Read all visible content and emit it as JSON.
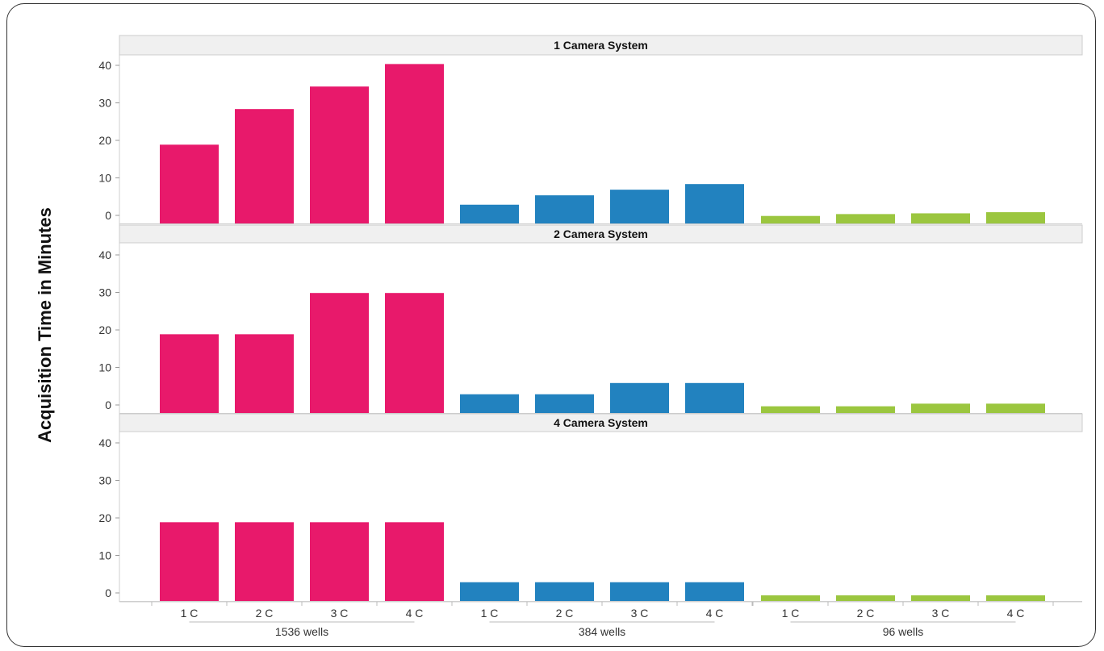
{
  "chart_data": {
    "type": "bar",
    "ylabel": "Acquisition Time in Minutes",
    "yticks": [
      0,
      10,
      20,
      30,
      40
    ],
    "ylim": [
      0,
      45
    ],
    "grid": false,
    "categories": [
      "1 C",
      "2 C",
      "3 C",
      "4 C",
      "1 C",
      "2 C",
      "3 C",
      "4 C",
      "1 C",
      "2 C",
      "3 C",
      "4 C"
    ],
    "groups": [
      {
        "label": "1536 wells",
        "color": "#E8196B"
      },
      {
        "label": "384 wells",
        "color": "#2282BF"
      },
      {
        "label": "96 wells",
        "color": "#9BC63F"
      }
    ],
    "panels": [
      {
        "title": "1 Camera System",
        "values": [
          21,
          30.5,
          36.5,
          42.5,
          5,
          7.5,
          9,
          10.5,
          2,
          2.5,
          2.7,
          3
        ]
      },
      {
        "title": "2 Camera System",
        "values": [
          21,
          21,
          32,
          32,
          5,
          5,
          8,
          8,
          1.8,
          1.8,
          2.5,
          2.5
        ]
      },
      {
        "title": "4 Camera System",
        "values": [
          21,
          21,
          21,
          21,
          5,
          5,
          5,
          5,
          1.5,
          1.5,
          1.5,
          1.5
        ]
      }
    ]
  }
}
